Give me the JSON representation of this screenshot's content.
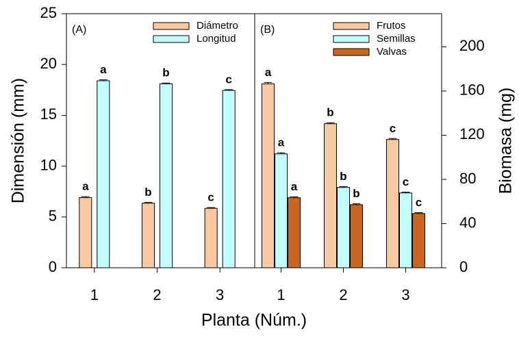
{
  "chart_data": [
    {
      "type": "bar",
      "panel_label": "(A)",
      "ylabel": "Dimensión (mm)",
      "xlabel": "Planta (Núm.)",
      "yaxis_side": "left",
      "categories": [
        "1",
        "2",
        "3"
      ],
      "ylim": [
        0,
        25
      ],
      "yticks": [
        0,
        5,
        10,
        15,
        20,
        25
      ],
      "legend": "upper right",
      "series": [
        {
          "name": "Diámetro",
          "color": "#f9c9a2",
          "values": [
            6.9,
            6.35,
            5.85
          ],
          "errors": [
            0.1,
            0.08,
            0.08
          ],
          "letters": [
            "a",
            "b",
            "c"
          ]
        },
        {
          "name": "Longitud",
          "color": "#c4ffff",
          "values": [
            18.4,
            18.1,
            17.45
          ],
          "errors": [
            0.1,
            0.08,
            0.08
          ],
          "letters": [
            "a",
            "b",
            "c"
          ]
        }
      ]
    },
    {
      "type": "bar",
      "panel_label": "(B)",
      "ylabel": "Biomasa (mg)",
      "yaxis_side": "right",
      "categories": [
        "1",
        "2",
        "3"
      ],
      "ylim": [
        0,
        230
      ],
      "yticks": [
        0,
        40,
        80,
        120,
        160,
        200
      ],
      "legend": "upper right",
      "series": [
        {
          "name": "Frutos",
          "color": "#f9c9a2",
          "values": [
            166.5,
            130.4,
            116.1
          ],
          "errors": [
            1.2,
            0.9,
            0.9
          ],
          "letters": [
            "a",
            "b",
            "c"
          ]
        },
        {
          "name": "Semillas",
          "color": "#c4ffff",
          "values": [
            103.1,
            72.7,
            67.7
          ],
          "errors": [
            1.0,
            0.8,
            0.8
          ],
          "letters": [
            "a",
            "b",
            "c"
          ]
        },
        {
          "name": "Valvas",
          "color": "#c8661f",
          "values": [
            63.4,
            57.1,
            49.1
          ],
          "errors": [
            0.9,
            0.8,
            0.8
          ],
          "letters": [
            "a",
            "b",
            "c"
          ]
        }
      ]
    }
  ]
}
